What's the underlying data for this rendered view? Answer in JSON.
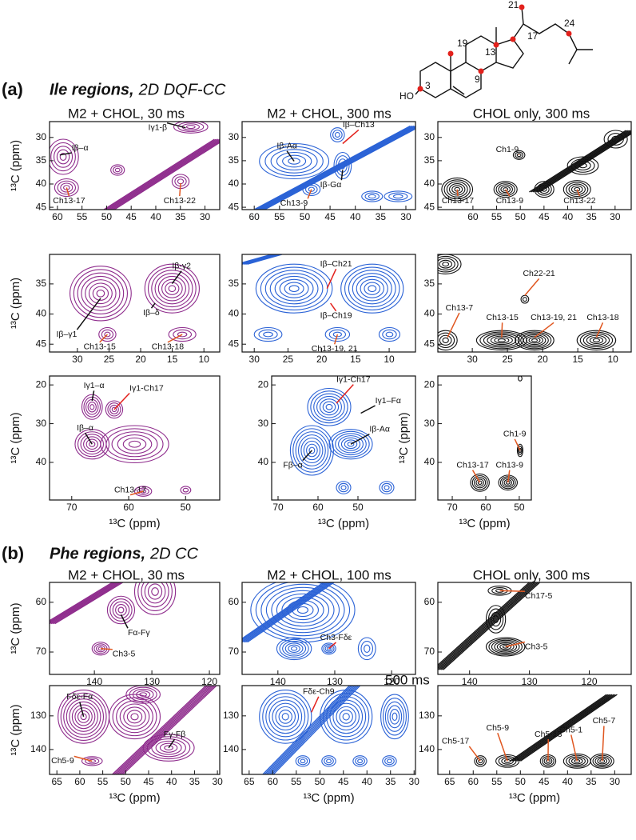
{
  "structure": {
    "labels": [
      "21",
      "24",
      "19",
      "17",
      "13",
      "9",
      "3",
      "HO"
    ]
  },
  "sections": [
    {
      "label": "(a)",
      "name": "Ile regions,",
      "method": "2D DQF-CC",
      "columns": [
        "M2 + CHOL, 30 ms",
        "M2 + CHOL, 300 ms",
        "CHOL only, 300 ms"
      ]
    },
    {
      "label": "(b)",
      "name": "Phe regions,",
      "method": "2D CC",
      "columns": [
        "M2 + CHOL, 30 ms",
        "M2 + CHOL, 100 ms",
        "CHOL only, 300 ms"
      ]
    }
  ],
  "note": "500 ms",
  "chart_data": [
    {
      "type": "contour",
      "color": "#8e2b8c",
      "ylabel": "¹³C (ppm)",
      "xlim": [
        61.6,
        27
      ],
      "ylim": [
        26.6,
        45.5
      ],
      "xticks": [
        60,
        55,
        50,
        45,
        40,
        35,
        30
      ],
      "yticks": [
        30,
        35,
        40,
        45
      ],
      "annotations": [
        {
          "text": "Iβ–α",
          "color": "#111"
        },
        {
          "text": "Iγ1-β",
          "color": "#111"
        },
        {
          "text": "Ch13-17",
          "color": "#e0561f"
        },
        {
          "text": "Ch13-22",
          "color": "#e0561f"
        }
      ]
    },
    {
      "type": "contour",
      "color": "#2a62d6",
      "xlim": [
        62.4,
        28.1
      ],
      "ylim": [
        26.6,
        45.5
      ],
      "xticks": [
        60,
        55,
        50,
        45,
        40,
        35,
        30
      ],
      "yticks": [
        30,
        35,
        40,
        45
      ],
      "annotations": [
        {
          "text": "Iβ-Aα",
          "color": "#111"
        },
        {
          "text": "Iβ–Ch13",
          "color": "#e3211c"
        },
        {
          "text": "Iβ-Gα",
          "color": "#111"
        },
        {
          "text": "Ch13-9",
          "color": "#e0561f"
        }
      ]
    },
    {
      "type": "contour",
      "color": "#111111",
      "xlim": [
        67.4,
        26.6
      ],
      "ylim": [
        26.6,
        45.5
      ],
      "xticks": [
        60,
        55,
        50,
        45,
        40,
        35,
        30
      ],
      "yticks": [
        30,
        35,
        40,
        45
      ],
      "annotations": [
        {
          "text": "Ch1-9",
          "color": "#e0561f"
        },
        {
          "text": "Ch13-17",
          "color": "#e0561f"
        },
        {
          "text": "Ch13-9",
          "color": "#e0561f"
        },
        {
          "text": "Ch13-22",
          "color": "#e0561f"
        }
      ]
    },
    {
      "type": "contour",
      "color": "#8e2b8c",
      "ylabel": "¹³C (ppm)",
      "xlim": [
        34.4,
        7.5
      ],
      "ylim": [
        30.1,
        46.3
      ],
      "xticks": [
        30,
        25,
        20,
        15,
        10
      ],
      "yticks": [
        35,
        40,
        45
      ],
      "annotations": [
        {
          "text": "Iβ-γ2",
          "color": "#111"
        },
        {
          "text": "Iβ–γ1",
          "color": "#111"
        },
        {
          "text": "Iβ–δ",
          "color": "#111"
        },
        {
          "text": "Ch13-15",
          "color": "#e0561f"
        },
        {
          "text": "Ch13-18",
          "color": "#e0561f"
        }
      ]
    },
    {
      "type": "contour",
      "color": "#2a62d6",
      "xlim": [
        31.8,
        6.1
      ],
      "ylim": [
        30.1,
        46.3
      ],
      "xticks": [
        30,
        25,
        20,
        15,
        10
      ],
      "yticks": [
        35,
        40,
        45
      ],
      "annotations": [
        {
          "text": "Iβ–Ch21",
          "color": "#e3211c"
        },
        {
          "text": "Iβ–Ch19",
          "color": "#e3211c"
        },
        {
          "text": "Ch13-19, 21",
          "color": "#e0561f"
        }
      ]
    },
    {
      "type": "contour",
      "color": "#111111",
      "xlim": [
        34.9,
        7.4
      ],
      "ylim": [
        30.1,
        46.3
      ],
      "xticks": [
        30,
        25,
        20,
        15,
        10
      ],
      "yticks": [
        35,
        40,
        45
      ],
      "annotations": [
        {
          "text": "Ch22-21",
          "color": "#e0561f"
        },
        {
          "text": "Ch13-7",
          "color": "#e0561f"
        },
        {
          "text": "Ch13-15",
          "color": "#e0561f"
        },
        {
          "text": "Ch13-19, 21",
          "color": "#e0561f"
        },
        {
          "text": "Ch13-18",
          "color": "#e0561f"
        }
      ]
    },
    {
      "type": "contour",
      "color": "#8e2b8c",
      "xlabel": "¹³C (ppm)",
      "ylabel": "¹³C (ppm)",
      "xlim": [
        73.9,
        44
      ],
      "ylim": [
        17.7,
        49.7
      ],
      "xticks": [
        70,
        60,
        50
      ],
      "yticks": [
        20,
        30,
        40
      ],
      "annotations": [
        {
          "text": "Iγ1–α",
          "color": "#111"
        },
        {
          "text": "Iγ1-Ch17",
          "color": "#e3211c"
        },
        {
          "text": "Iβ–α",
          "color": "#111"
        },
        {
          "text": "Ch13-17",
          "color": "#e0561f"
        }
      ]
    },
    {
      "type": "contour",
      "color": "#2a62d6",
      "xlabel": "¹³C (ppm)",
      "xlim": [
        71.6,
        35.6
      ],
      "ylim": [
        17.7,
        49.7
      ],
      "xticks": [
        70,
        60,
        50
      ],
      "yticks": [
        20,
        30,
        40
      ],
      "annotations": [
        {
          "text": "Iγ1-Ch17",
          "color": "#e3211c"
        },
        {
          "text": "Iγ1–Fα",
          "color": "#111"
        },
        {
          "text": "Iβ-Aα",
          "color": "#111"
        },
        {
          "text": "Fβ–α",
          "color": "#111"
        }
      ]
    },
    {
      "type": "contour",
      "color": "#111111",
      "xlabel": "¹³C (ppm)",
      "ylabel": "¹³C (ppm)",
      "xlim": [
        74.3,
        46.4
      ],
      "ylim": [
        17.7,
        49.7
      ],
      "xticks": [
        70,
        60,
        50
      ],
      "yticks": [
        20,
        30,
        40
      ],
      "annotations": [
        {
          "text": "Ch1-9",
          "color": "#e0561f"
        },
        {
          "text": "Ch13-17",
          "color": "#e0561f"
        },
        {
          "text": "Ch13-9",
          "color": "#e0561f"
        }
      ]
    },
    {
      "type": "contour",
      "color": "#8e2b8c",
      "ylabel": "¹³C (ppm)",
      "xlim": [
        147.8,
        118.2
      ],
      "ylim": [
        56,
        74.5
      ],
      "xticks": [
        140,
        130,
        120
      ],
      "yticks": [
        60,
        70
      ],
      "annotations": [
        {
          "text": "Fα-Fγ",
          "color": "#111"
        },
        {
          "text": "Ch3-5",
          "color": "#e0561f"
        }
      ]
    },
    {
      "type": "contour",
      "color": "#2a62d6",
      "xlim": [
        146.3,
        115.8
      ],
      "ylim": [
        56,
        74.5
      ],
      "xticks": [
        140,
        130,
        120
      ],
      "yticks": [
        60,
        70
      ],
      "annotations": [
        {
          "text": "Ch3-Fδε",
          "color": "#e3211c"
        }
      ]
    },
    {
      "type": "contour",
      "color": "#111111",
      "xlim": [
        145.3,
        113
      ],
      "ylim": [
        56,
        74.5
      ],
      "xticks": [
        140,
        130,
        120
      ],
      "yticks": [
        60,
        70
      ],
      "annotations": [
        {
          "text": "Ch17-5",
          "color": "#e0561f"
        },
        {
          "text": "Ch3-5",
          "color": "#e0561f"
        }
      ]
    },
    {
      "type": "contour",
      "color": "#8e2b8c",
      "xlabel": "¹³C (ppm)",
      "ylabel": "¹³C (ppm)",
      "xlim": [
        66.6,
        29.5
      ],
      "ylim": [
        121,
        147.4
      ],
      "xticks": [
        65,
        60,
        55,
        50,
        45,
        40,
        35,
        30
      ],
      "yticks": [
        130,
        140
      ],
      "annotations": [
        {
          "text": "Fδε-Fα",
          "color": "#111"
        },
        {
          "text": "Fγ-Fβ",
          "color": "#111"
        },
        {
          "text": "Ch5-9",
          "color": "#e0561f"
        }
      ]
    },
    {
      "type": "contour",
      "color": "#2a62d6",
      "xlabel": "¹³C (ppm)",
      "xlim": [
        66.5,
        29.7
      ],
      "ylim": [
        121,
        147.4
      ],
      "xticks": [
        65,
        60,
        55,
        50,
        45,
        40,
        35,
        30
      ],
      "yticks": [
        130,
        140
      ],
      "annotations": [
        {
          "text": "Fδε-Ch9",
          "color": "#e3211c"
        }
      ]
    },
    {
      "type": "contour",
      "color": "#111111",
      "xlabel": "¹³C (ppm)",
      "xlim": [
        67.5,
        26.5
      ],
      "ylim": [
        121,
        147.4
      ],
      "xticks": [
        65,
        60,
        55,
        50,
        45,
        40,
        35,
        30
      ],
      "yticks": [
        130,
        140
      ],
      "annotations": [
        {
          "text": "Ch5-17",
          "color": "#e0561f"
        },
        {
          "text": "Ch5-9",
          "color": "#e0561f"
        },
        {
          "text": "Ch5-13",
          "color": "#e0561f"
        },
        {
          "text": "Ch5-1",
          "color": "#e0561f"
        },
        {
          "text": "Ch5-7",
          "color": "#e0561f"
        }
      ]
    }
  ]
}
